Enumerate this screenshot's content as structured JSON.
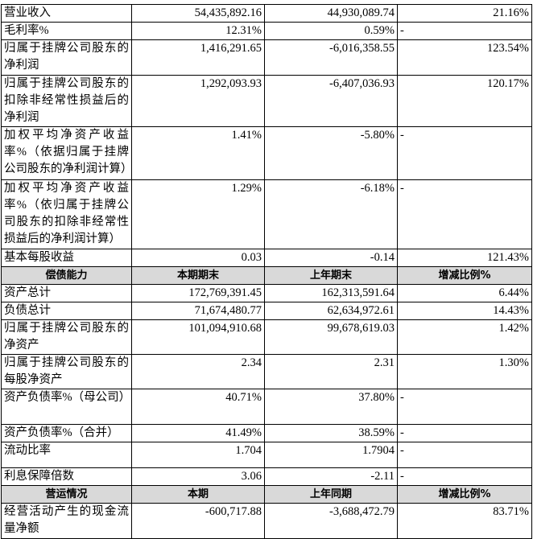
{
  "table": {
    "sections": [
      {
        "rows": [
          [
            "营业收入",
            "54,435,892.16",
            "44,930,089.74",
            "21.16%"
          ],
          [
            "毛利率%",
            "12.31%",
            "0.59%",
            "-"
          ],
          [
            "归属于挂牌公司股东的净利润",
            "1,416,291.65",
            "-6,016,358.55",
            "123.54%"
          ],
          [
            "归属于挂牌公司股东的扣除非经常性损益后的净利润",
            "1,292,093.93",
            "-6,407,036.93",
            "120.17%"
          ],
          [
            "加权平均净资产收益率%（依据归属于挂牌公司股东的净利润计算）",
            "1.41%",
            "-5.80%",
            "-"
          ],
          [
            "加权平均净资产收益率%（依归属于挂牌公司股东的扣除非经常性损益后的净利润计算）",
            "1.29%",
            "-6.18%",
            "-"
          ],
          [
            "基本每股收益",
            "0.03",
            "-0.14",
            "121.43%"
          ]
        ]
      },
      {
        "header": [
          "偿债能力",
          "本期期末",
          "上年期末",
          "增减比例%"
        ],
        "rows": [
          [
            "资产总计",
            "172,769,391.45",
            "162,313,591.64",
            "6.44%"
          ],
          [
            "负债总计",
            "71,674,480.77",
            "62,634,972.61",
            "14.43%"
          ],
          [
            "归属于挂牌公司股东的净资产",
            "101,094,910.68",
            "99,678,619.03",
            "1.42%"
          ],
          [
            "归属于挂牌公司股东的每股净资产",
            "2.34",
            "2.31",
            "1.30%"
          ],
          [
            "资产负债率%（母公司）",
            "40.71%",
            "37.80%",
            "-"
          ],
          [
            "资产负债率%（合并）",
            "41.49%",
            "38.59%",
            "-"
          ],
          [
            "流动比率",
            "1.704",
            "1.7904",
            "-"
          ],
          [
            "利息保障倍数",
            "3.06",
            "-2.11",
            "-"
          ]
        ]
      },
      {
        "header": [
          "营运情况",
          "本期",
          "上年同期",
          "增减比例%"
        ],
        "rows": [
          [
            "经营活动产生的现金流量净额",
            "-600,717.88",
            "-3,688,472.79",
            "83.71%"
          ]
        ]
      }
    ]
  }
}
